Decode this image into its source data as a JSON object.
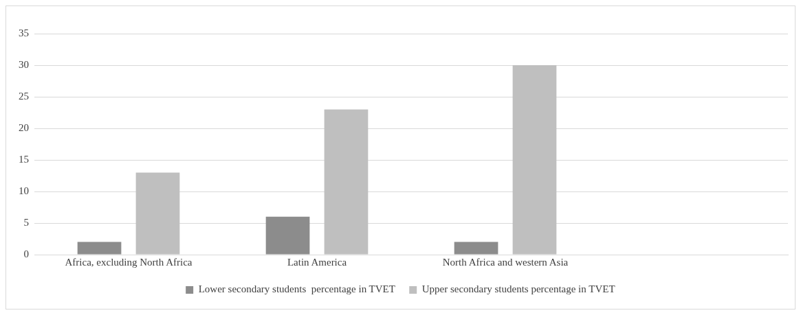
{
  "chart_data": {
    "type": "bar",
    "categories": [
      "Africa, excluding North Africa",
      "Latin America",
      "North Africa and western Asia",
      null
    ],
    "series": [
      {
        "name": "Lower secondary students  percentage in TVET",
        "color": "#8c8c8c",
        "values": [
          2,
          6,
          2,
          null
        ]
      },
      {
        "name": "Upper secondary students percentage in TVET",
        "color": "#bfbfbf",
        "values": [
          13,
          23,
          30,
          null
        ]
      }
    ],
    "ylim": [
      0,
      35
    ],
    "yticks": [
      0,
      5,
      10,
      15,
      20,
      25,
      30,
      35
    ],
    "grid": "y",
    "legend": "bottom"
  }
}
